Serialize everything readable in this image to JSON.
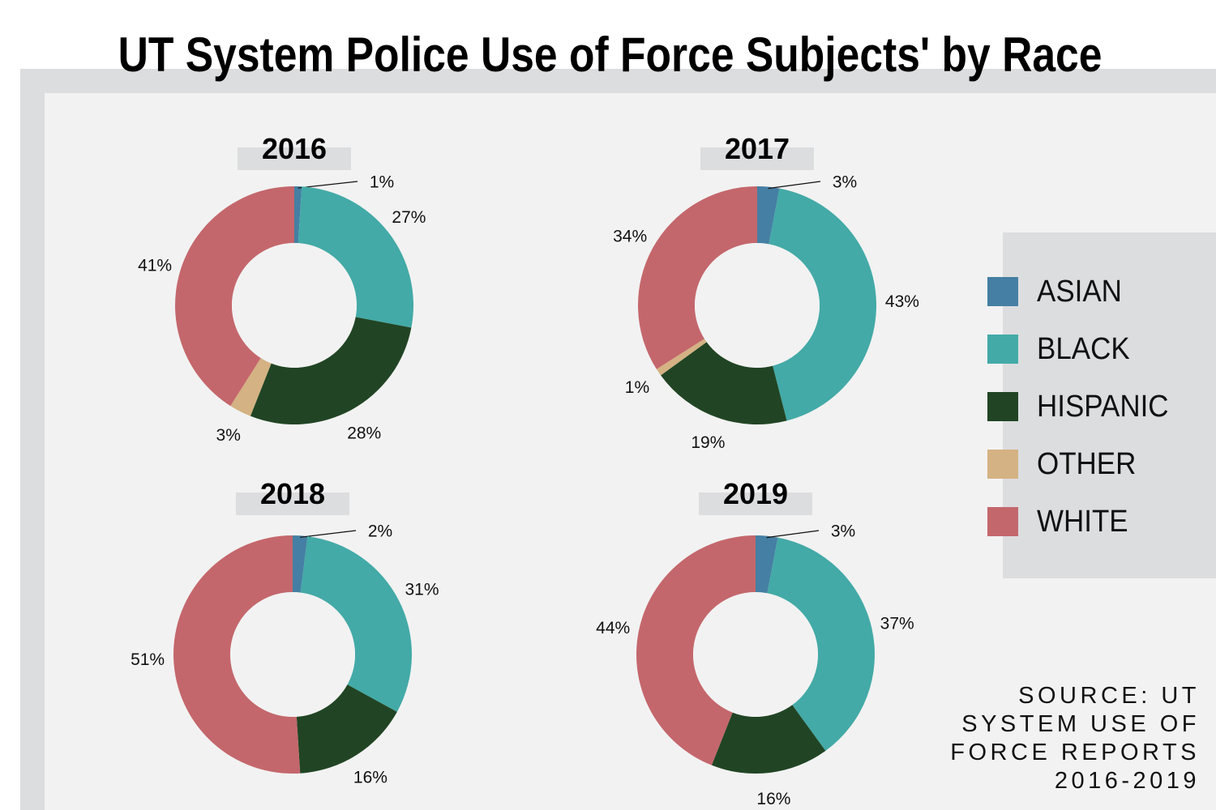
{
  "title": "UT System Police Use of Force Subjects' by Race",
  "colors": {
    "ASIAN": "#457fa3",
    "BLACK": "#43aaa7",
    "HISPANIC": "#214524",
    "OTHER": "#d4b283",
    "WHITE": "#c4676c",
    "background": "#f2f2f2",
    "frame": "#dcdddf"
  },
  "legend": {
    "items": [
      {
        "label": "ASIAN",
        "color": "#457fa3"
      },
      {
        "label": "BLACK",
        "color": "#43aaa7"
      },
      {
        "label": "HISPANIC",
        "color": "#214524"
      },
      {
        "label": "OTHER",
        "color": "#d4b283"
      },
      {
        "label": "WHITE",
        "color": "#c4676c"
      }
    ]
  },
  "source": {
    "lines": [
      "SOURCE: UT",
      "SYSTEM USE OF",
      "FORCE REPORTS",
      "2016-2019"
    ]
  },
  "chart_data": [
    {
      "type": "pie",
      "title": "2016",
      "categories": [
        "ASIAN",
        "BLACK",
        "HISPANIC",
        "OTHER",
        "WHITE"
      ],
      "values": [
        1,
        27,
        28,
        3,
        41
      ],
      "labels": [
        "1%",
        "27%",
        "28%",
        "3%",
        "41%"
      ]
    },
    {
      "type": "pie",
      "title": "2017",
      "categories": [
        "ASIAN",
        "BLACK",
        "HISPANIC",
        "OTHER",
        "WHITE"
      ],
      "values": [
        3,
        43,
        19,
        1,
        34
      ],
      "labels": [
        "3%",
        "43%",
        "19%",
        "1%",
        "34%"
      ]
    },
    {
      "type": "pie",
      "title": "2018",
      "categories": [
        "ASIAN",
        "BLACK",
        "HISPANIC",
        "WHITE"
      ],
      "values": [
        2,
        31,
        16,
        51
      ],
      "labels": [
        "2%",
        "31%",
        "16%",
        "51%"
      ]
    },
    {
      "type": "pie",
      "title": "2019",
      "categories": [
        "ASIAN",
        "BLACK",
        "HISPANIC",
        "WHITE"
      ],
      "values": [
        3,
        37,
        16,
        44
      ],
      "labels": [
        "3%",
        "37%",
        "16%",
        "44%"
      ]
    }
  ]
}
